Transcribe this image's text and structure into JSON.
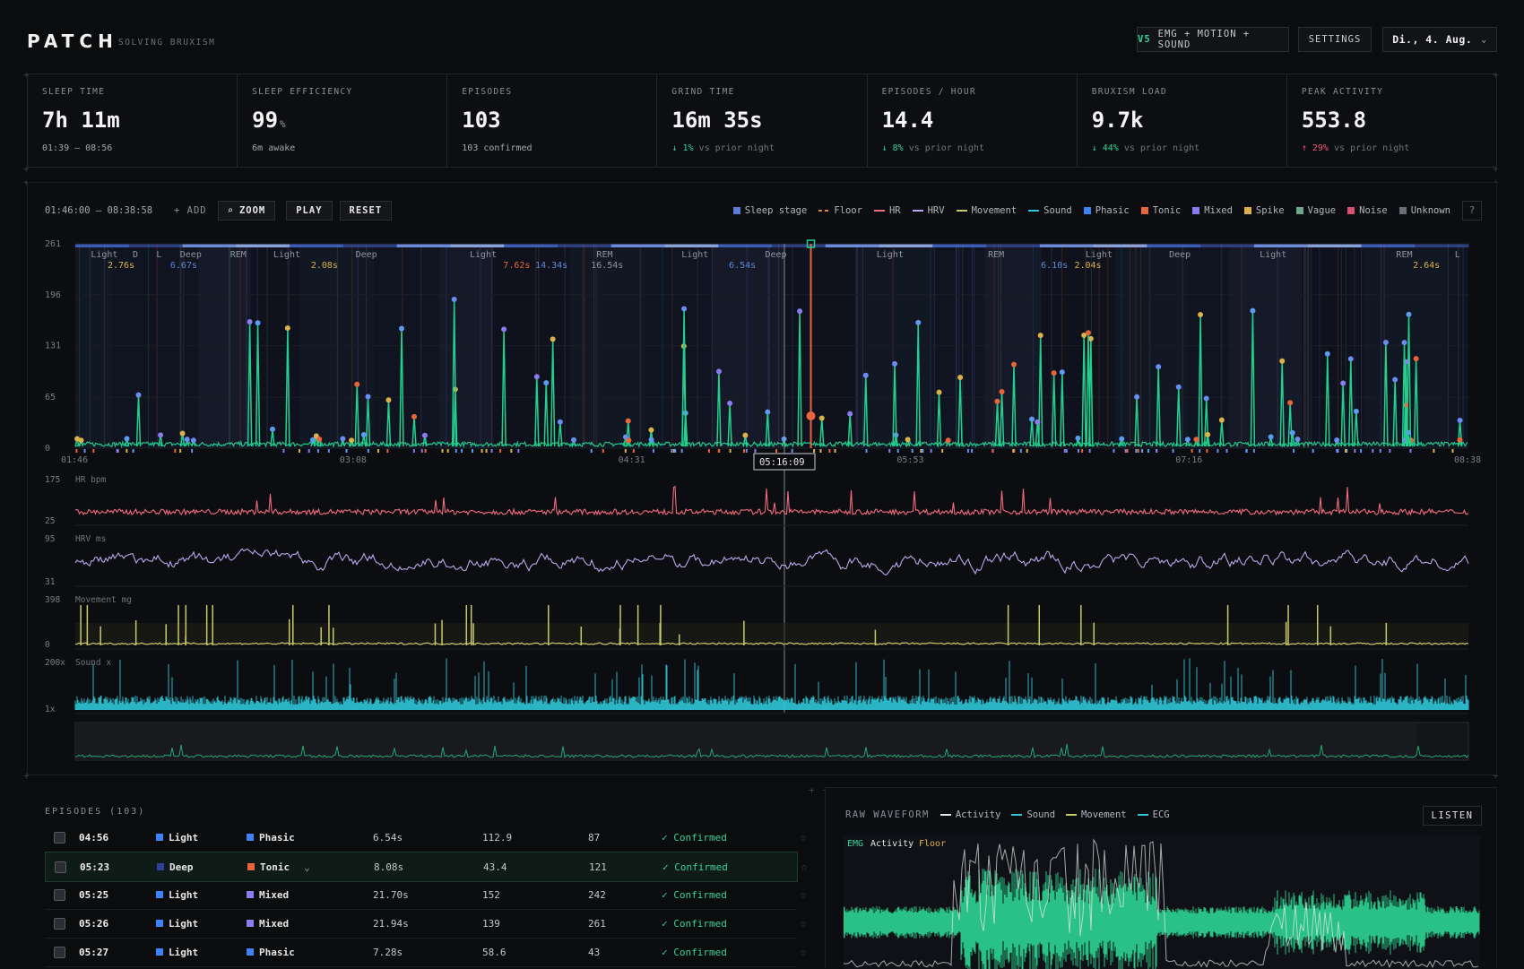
{
  "header": {
    "logo": "PATCH",
    "tagline": "SOLVING BRUXISM",
    "device_badge": "V5",
    "device_label": "EMG + MOTION + SOUND",
    "settings": "SETTINGS",
    "date": "Di., 4. Aug."
  },
  "stats": [
    {
      "label": "SLEEP TIME",
      "value": "7h 11m",
      "unit": "",
      "sub": "01:39 – 08:56",
      "delta": "",
      "dir": ""
    },
    {
      "label": "SLEEP EFFICIENCY",
      "value": "99",
      "unit": "%",
      "sub": "6m awake",
      "delta": "",
      "dir": ""
    },
    {
      "label": "EPISODES",
      "value": "103",
      "unit": "",
      "sub": "103 confirmed",
      "delta": "",
      "dir": ""
    },
    {
      "label": "GRIND TIME",
      "value": "16m 35s",
      "unit": "",
      "sub": "vs prior night",
      "delta": "↓ 1%",
      "dir": "down"
    },
    {
      "label": "EPISODES / HOUR",
      "value": "14.4",
      "unit": "",
      "sub": "vs prior night",
      "delta": "↓ 8%",
      "dir": "down"
    },
    {
      "label": "BRUXISM LOAD",
      "value": "9.7k",
      "unit": "",
      "sub": "vs prior night",
      "delta": "↓ 44%",
      "dir": "down"
    },
    {
      "label": "PEAK ACTIVITY",
      "value": "553.8",
      "unit": "",
      "sub": "vs prior night",
      "delta": "↑ 29%",
      "dir": "up"
    }
  ],
  "controls": {
    "range": "01:46:00 – 08:38:58",
    "add": "+ ADD",
    "zoom": "ZOOM",
    "play": "PLAY",
    "reset": "RESET",
    "help": "?"
  },
  "legend": [
    {
      "label": "Sleep stage",
      "kind": "sq",
      "color": "#5b7bd5"
    },
    {
      "label": "Floor",
      "kind": "dash",
      "color": "#e0863a"
    },
    {
      "label": "HR",
      "kind": "line",
      "color": "#f06b7e"
    },
    {
      "label": "HRV",
      "kind": "line",
      "color": "#b8a8e8"
    },
    {
      "label": "Movement",
      "kind": "line",
      "color": "#c9c96a"
    },
    {
      "label": "Sound",
      "kind": "line",
      "color": "#2fc8d8"
    },
    {
      "label": "Phasic",
      "kind": "sq",
      "color": "#3b82f6"
    },
    {
      "label": "Tonic",
      "kind": "sq",
      "color": "#e8653a"
    },
    {
      "label": "Mixed",
      "kind": "sq",
      "color": "#8b7cf0"
    },
    {
      "label": "Spike",
      "kind": "sq",
      "color": "#d9b24a"
    },
    {
      "label": "Vague",
      "kind": "sq",
      "color": "#6fa58c"
    },
    {
      "label": "Noise",
      "kind": "sq",
      "color": "#d94f6e"
    },
    {
      "label": "Unknown",
      "kind": "sq",
      "color": "#6b6f75"
    }
  ],
  "chart_data": {
    "type": "line",
    "main_yticks": [
      "261",
      "196",
      "131",
      "65",
      "0"
    ],
    "xticks": [
      "01:46",
      "03:08",
      "04:31",
      "05:53",
      "07:16",
      "08:38"
    ],
    "cursor_time": "05:16:09",
    "stage_labels": [
      "Light",
      "D",
      "L",
      "Deep",
      "REM",
      "Light",
      "Deep",
      "Light",
      "REM",
      "Light",
      "Deep",
      "Light",
      "REM",
      "Light",
      "Deep",
      "Light",
      "REM",
      "L"
    ],
    "duration_labels": [
      "2.76s",
      "6.67s",
      "2.08s",
      "7.62s",
      "14.34s",
      "16.54s",
      "6.54s",
      "6.10s",
      "2.04s",
      "2.64s"
    ],
    "subplots": [
      {
        "name": "HR bpm",
        "ymax": "175",
        "ymin": "25"
      },
      {
        "name": "HRV ms",
        "ymax": "95",
        "ymin": "31"
      },
      {
        "name": "Movement mg",
        "ymax": "398",
        "ymin": "0"
      },
      {
        "name": "Sound x",
        "ymax": "200x",
        "ymin": "1x"
      }
    ]
  },
  "episodes": {
    "title": "EPISODES (103)",
    "rows": [
      {
        "time": "04:56",
        "stage": "Light",
        "stage_color": "#3b82f6",
        "type": "Phasic",
        "type_color": "#3b82f6",
        "duration": "6.54s",
        "v1": "112.9",
        "v2": "87",
        "status": "✓ Confirmed",
        "expand": ""
      },
      {
        "time": "05:23",
        "stage": "Deep",
        "stage_color": "#2f3f9a",
        "type": "Tonic",
        "type_color": "#e8653a",
        "duration": "8.08s",
        "v1": "43.4",
        "v2": "121",
        "status": "✓ Confirmed",
        "expand": "⌄"
      },
      {
        "time": "05:25",
        "stage": "Light",
        "stage_color": "#3b82f6",
        "type": "Mixed",
        "type_color": "#8b7cf0",
        "duration": "21.70s",
        "v1": "152",
        "v2": "242",
        "status": "✓ Confirmed",
        "expand": ""
      },
      {
        "time": "05:26",
        "stage": "Light",
        "stage_color": "#3b82f6",
        "type": "Mixed",
        "type_color": "#8b7cf0",
        "duration": "21.94s",
        "v1": "139",
        "v2": "261",
        "status": "✓ Confirmed",
        "expand": ""
      },
      {
        "time": "05:27",
        "stage": "Light",
        "stage_color": "#3b82f6",
        "type": "Phasic",
        "type_color": "#3b82f6",
        "duration": "7.28s",
        "v1": "58.6",
        "v2": "43",
        "status": "✓ Confirmed",
        "expand": ""
      }
    ]
  },
  "raw": {
    "title": "RAW WAVEFORM",
    "legend": [
      "Activity",
      "Sound",
      "Movement",
      "ECG"
    ],
    "channel": "EMG",
    "activity": "Activity",
    "floor": "Floor",
    "listen": "LISTEN"
  }
}
